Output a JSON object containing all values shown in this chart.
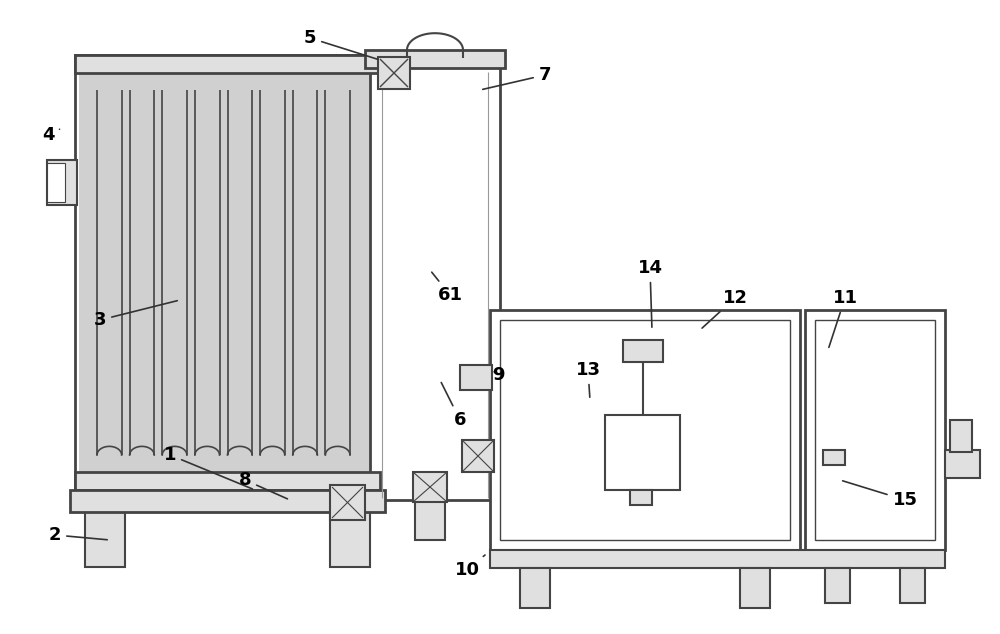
{
  "bg": "white",
  "lc": "#444444",
  "lw": 1.5,
  "tlw": 2.0,
  "gray_fill": "#c8c8c8",
  "light_gray": "#e0e0e0",
  "dot_fill": "#d0d0d0"
}
